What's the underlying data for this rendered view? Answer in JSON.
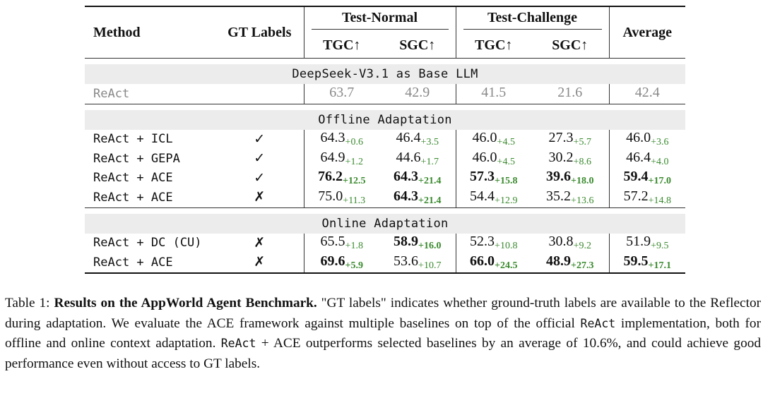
{
  "table": {
    "headers": {
      "method": "Method",
      "gt_labels": "GT Labels",
      "test_normal": "Test-Normal",
      "test_challenge": "Test-Challenge",
      "average": "Average",
      "tgc": "TGC↑",
      "sgc": "SGC↑"
    },
    "sections": [
      {
        "title": "DeepSeek-V3.1 as Base LLM",
        "rows": [
          {
            "method": "ReAct",
            "gt": "",
            "baseline": true,
            "cells": [
              {
                "v": "63.7",
                "d": ""
              },
              {
                "v": "42.9",
                "d": ""
              },
              {
                "v": "41.5",
                "d": ""
              },
              {
                "v": "21.6",
                "d": ""
              },
              {
                "v": "42.4",
                "d": ""
              }
            ]
          }
        ]
      },
      {
        "title": "Offline Adaptation",
        "rows": [
          {
            "method": "ReAct + ICL",
            "gt": "✓",
            "cells": [
              {
                "v": "64.3",
                "d": "+0.6"
              },
              {
                "v": "46.4",
                "d": "+3.5"
              },
              {
                "v": "46.0",
                "d": "+4.5"
              },
              {
                "v": "27.3",
                "d": "+5.7"
              },
              {
                "v": "46.0",
                "d": "+3.6"
              }
            ]
          },
          {
            "method": "ReAct + GEPA",
            "gt": "✓",
            "cells": [
              {
                "v": "64.9",
                "d": "+1.2"
              },
              {
                "v": "44.6",
                "d": "+1.7"
              },
              {
                "v": "46.0",
                "d": "+4.5"
              },
              {
                "v": "30.2",
                "d": "+8.6"
              },
              {
                "v": "46.4",
                "d": "+4.0"
              }
            ]
          },
          {
            "method": "ReAct + ACE",
            "gt": "✓",
            "cells": [
              {
                "v": "76.2",
                "d": "+12.5",
                "b": true
              },
              {
                "v": "64.3",
                "d": "+21.4",
                "b": true
              },
              {
                "v": "57.3",
                "d": "+15.8",
                "b": true
              },
              {
                "v": "39.6",
                "d": "+18.0",
                "b": true
              },
              {
                "v": "59.4",
                "d": "+17.0",
                "b": true
              }
            ]
          },
          {
            "method": "ReAct + ACE",
            "gt": "✗",
            "cells": [
              {
                "v": "75.0",
                "d": "+11.3"
              },
              {
                "v": "64.3",
                "d": "+21.4",
                "b": true
              },
              {
                "v": "54.4",
                "d": "+12.9"
              },
              {
                "v": "35.2",
                "d": "+13.6"
              },
              {
                "v": "57.2",
                "d": "+14.8"
              }
            ]
          }
        ]
      },
      {
        "title": "Online Adaptation",
        "rows": [
          {
            "method": "ReAct + DC (CU)",
            "gt": "✗",
            "cells": [
              {
                "v": "65.5",
                "d": "+1.8"
              },
              {
                "v": "58.9",
                "d": "+16.0",
                "b": true
              },
              {
                "v": "52.3",
                "d": "+10.8"
              },
              {
                "v": "30.8",
                "d": "+9.2"
              },
              {
                "v": "51.9",
                "d": "+9.5"
              }
            ]
          },
          {
            "method": "ReAct + ACE",
            "gt": "✗",
            "cells": [
              {
                "v": "69.6",
                "d": "+5.9",
                "b": true
              },
              {
                "v": "53.6",
                "d": "+10.7"
              },
              {
                "v": "66.0",
                "d": "+24.5",
                "b": true
              },
              {
                "v": "48.9",
                "d": "+27.3",
                "b": true
              },
              {
                "v": "59.5",
                "d": "+17.1",
                "b": true
              }
            ]
          }
        ]
      }
    ]
  },
  "caption": {
    "label": "Table 1:",
    "title": "Results on the AppWorld Agent Benchmark.",
    "t1": " \"GT labels\" indicates whether ground-truth labels are available to the Reflector during adaptation. We evaluate the ACE framework against multiple baselines on top of the official ",
    "code1": "ReAct",
    "t2": " implementation, both for offline and online context adaptation. ",
    "code2": "ReAct",
    "t3": " + ACE outperforms selected baselines by an average of 10.6%, and could achieve good performance even without access to GT labels."
  },
  "colors": {
    "delta": "#3a8a2e",
    "band": "#ececec",
    "baseline_text": "#888888"
  }
}
